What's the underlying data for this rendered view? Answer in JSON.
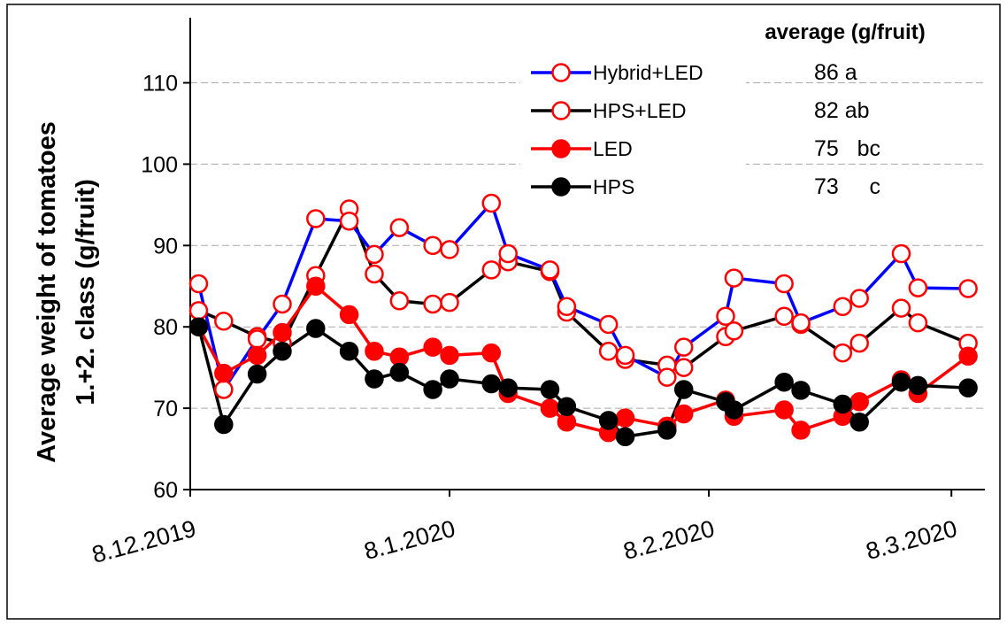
{
  "chart_data": {
    "type": "line",
    "ylabel": [
      "Average weight of tomatoes",
      "1.+2. class (g/fruit)"
    ],
    "x": [
      "9.12.2019",
      "12.12.2019",
      "16.12.2019",
      "19.12.2019",
      "23.12.2019",
      "27.12.2019",
      "30.12.2019",
      "2.1.2020",
      "6.1.2020",
      "8.1.2020",
      "13.1.2020",
      "15.1.2020",
      "20.1.2020",
      "22.1.2020",
      "27.1.2020",
      "29.1.2020",
      "3.2.2020",
      "5.2.2020",
      "10.2.2020",
      "11.2.2020",
      "17.2.2020",
      "19.2.2020",
      "24.2.2020",
      "26.2.2020",
      "2.3.2020",
      "4.3.2020",
      "10.3.2020"
    ],
    "series": [
      {
        "name": "Hybrid+LED",
        "color": "#0000ff",
        "marker_color": "#ff0000",
        "filled": false,
        "values": [
          85.3,
          72.3,
          78.5,
          82.8,
          93.3,
          93.0,
          88.9,
          92.2,
          90.0,
          89.5,
          95.2,
          89.0,
          87.0,
          82.5,
          80.3,
          76.5,
          73.8,
          77.5,
          81.3,
          86.0,
          85.3,
          80.5,
          82.5,
          83.5,
          89.0,
          84.8,
          84.7
        ]
      },
      {
        "name": "HPS+LED",
        "color": "#000000",
        "marker_color": "#ff0000",
        "filled": false,
        "values": [
          82.0,
          80.7,
          78.8,
          78.0,
          86.3,
          94.5,
          86.5,
          83.2,
          82.8,
          83.0,
          87.0,
          88.0,
          86.8,
          81.8,
          77.0,
          76.0,
          75.3,
          75.0,
          78.8,
          79.5,
          81.3,
          80.3,
          76.8,
          78.0,
          82.3,
          80.5,
          78.0
        ]
      },
      {
        "name": "LED",
        "color": "#ff0000",
        "marker_color": "#ff0000",
        "filled": true,
        "values": [
          80.0,
          74.3,
          76.5,
          79.3,
          85.0,
          81.5,
          77.0,
          76.3,
          77.5,
          76.5,
          76.8,
          71.8,
          70.0,
          68.3,
          67.0,
          68.8,
          67.8,
          69.3,
          71.0,
          69.0,
          69.8,
          67.3,
          69.0,
          70.8,
          73.5,
          71.8,
          76.4
        ]
      },
      {
        "name": "HPS",
        "color": "#000000",
        "marker_color": "#000000",
        "filled": true,
        "values": [
          80.0,
          68.0,
          74.2,
          77.0,
          79.8,
          77.0,
          73.6,
          74.4,
          72.3,
          73.6,
          73.0,
          72.5,
          72.3,
          70.2,
          68.5,
          66.5,
          67.3,
          72.3,
          70.8,
          69.8,
          73.2,
          72.2,
          70.5,
          68.3,
          73.2,
          72.8,
          72.5
        ]
      }
    ],
    "averages": {
      "title": "average (g/fruit)",
      "labels": [
        "86 a",
        "82 ab",
        "75   bc",
        "73     c"
      ]
    },
    "xlim": [
      "8.12.2019",
      "12.3.2020"
    ],
    "xticks": [
      "8.12.2019",
      "8.1.2020",
      "8.2.2020",
      "8.3.2020"
    ],
    "ylim": [
      60,
      118
    ],
    "yticks": [
      60,
      70,
      80,
      90,
      100,
      110
    ],
    "grid": true
  }
}
